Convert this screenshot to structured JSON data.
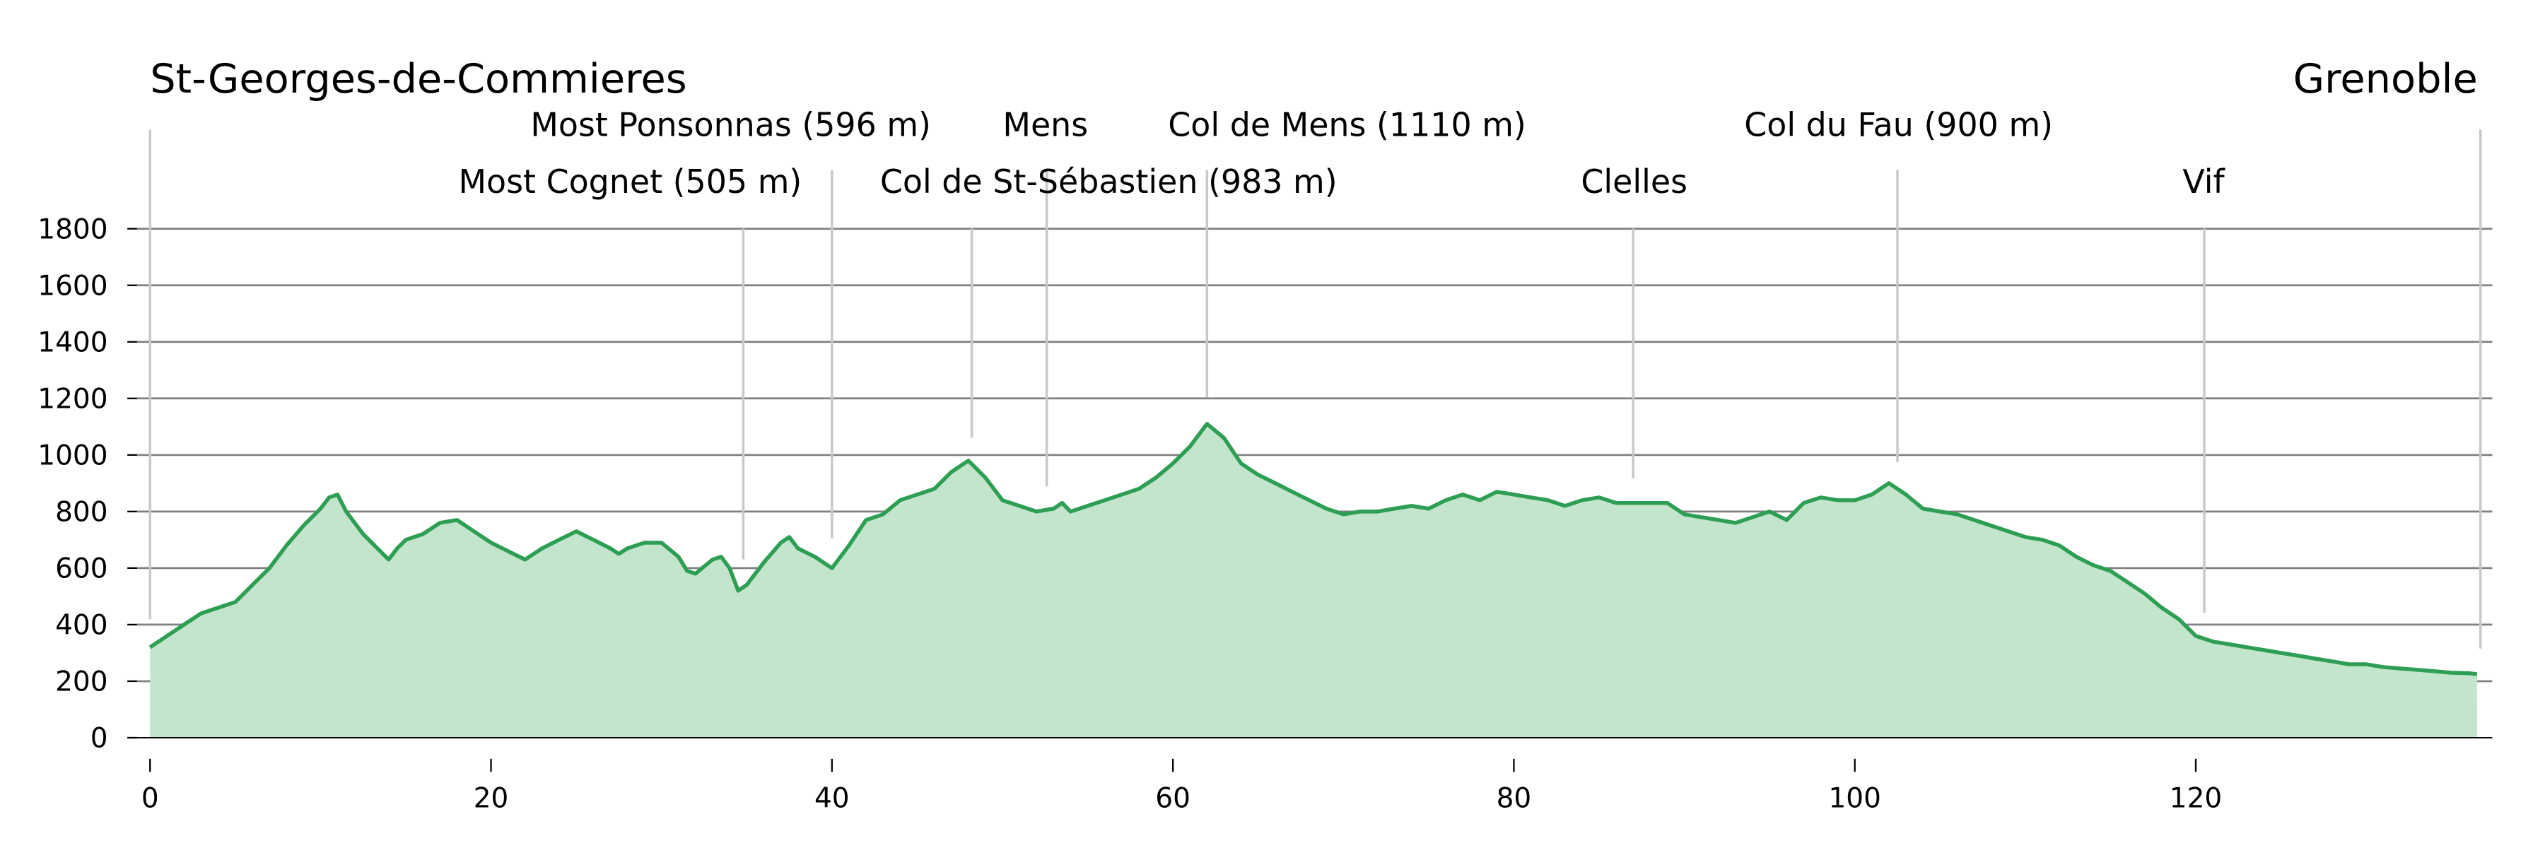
{
  "chart_data": {
    "type": "area",
    "title_start": "St-Georges-de-Commieres",
    "title_end": "Grenoble",
    "xlabel": "",
    "ylabel": "",
    "xlim": [
      0,
      137
    ],
    "ylim": [
      0,
      1800
    ],
    "xticks": [
      0,
      20,
      40,
      60,
      80,
      100,
      120
    ],
    "yticks": [
      0,
      200,
      400,
      600,
      800,
      1000,
      1200,
      1400,
      1600,
      1800
    ],
    "grid": "horizontal",
    "colors": {
      "line": "#2e9e55",
      "fill": "#c2e5cb",
      "grid": "#808080",
      "marker": "#c8c8c8"
    },
    "x": [
      0,
      1,
      2,
      3,
      4,
      5,
      6,
      7,
      8,
      9,
      10,
      10.5,
      11,
      11.5,
      12.5,
      13.5,
      14,
      14.5,
      15,
      16,
      17,
      18,
      19,
      20,
      21,
      22,
      23,
      24,
      25,
      26,
      27,
      27.5,
      28,
      29,
      30,
      31,
      31.5,
      32,
      33,
      33.5,
      34,
      34.5,
      35,
      36,
      37,
      37.5,
      38,
      39,
      40,
      41,
      42,
      43,
      44,
      45,
      46,
      47,
      48,
      49,
      50,
      51,
      52,
      53,
      53.5,
      54,
      55,
      56,
      57,
      58,
      59,
      60,
      61,
      62,
      63,
      64,
      65,
      66,
      67,
      68,
      69,
      70,
      71,
      72,
      73,
      74,
      75,
      76,
      77,
      78,
      79,
      80,
      81,
      82,
      83,
      84,
      85,
      86,
      87,
      88,
      89,
      90,
      91,
      92,
      93,
      94,
      95,
      96,
      97,
      98,
      99,
      100,
      101,
      102,
      103,
      104,
      105,
      106,
      107,
      108,
      109,
      110,
      111,
      112,
      113,
      114,
      115,
      116,
      117,
      118,
      119,
      120,
      121,
      122,
      123,
      124,
      125,
      126,
      127,
      128,
      129,
      130,
      131,
      132,
      133,
      134,
      135,
      136,
      136.5
    ],
    "y": [
      320,
      360,
      400,
      440,
      460,
      480,
      540,
      600,
      680,
      750,
      810,
      850,
      860,
      800,
      720,
      660,
      630,
      670,
      700,
      720,
      760,
      770,
      730,
      690,
      660,
      630,
      670,
      700,
      730,
      700,
      670,
      650,
      670,
      690,
      690,
      640,
      590,
      580,
      630,
      640,
      600,
      520,
      540,
      620,
      690,
      710,
      670,
      640,
      600,
      680,
      770,
      790,
      840,
      860,
      880,
      940,
      980,
      920,
      840,
      820,
      800,
      810,
      830,
      800,
      820,
      840,
      860,
      880,
      920,
      970,
      1030,
      1110,
      1060,
      970,
      930,
      900,
      870,
      840,
      810,
      790,
      800,
      800,
      810,
      820,
      810,
      840,
      860,
      840,
      870,
      860,
      850,
      840,
      820,
      840,
      850,
      830,
      830,
      830,
      830,
      790,
      780,
      770,
      760,
      780,
      800,
      770,
      830,
      850,
      840,
      840,
      860,
      900,
      860,
      810,
      800,
      790,
      770,
      750,
      730,
      710,
      700,
      680,
      640,
      610,
      590,
      550,
      510,
      460,
      420,
      360,
      340,
      330,
      320,
      310,
      300,
      290,
      280,
      270,
      260,
      260,
      250,
      245,
      240,
      235,
      230,
      228,
      225
    ],
    "annotations": [
      {
        "label": "Most Cognet (505 m)",
        "x": 34.8
      },
      {
        "label": "Most Ponsonnas (596 m)",
        "x": 40.0
      },
      {
        "label": "Col de St-Sébastien (983 m)",
        "x": 48.2
      },
      {
        "label": "Mens",
        "x": 52.6
      },
      {
        "label": "Col de Mens (1110 m)",
        "x": 62.0
      },
      {
        "label": "Clelles",
        "x": 87.0
      },
      {
        "label": "Col du Fau (900 m)",
        "x": 102.5
      },
      {
        "label": "Vif",
        "x": 120.5
      }
    ],
    "endpoints": [
      {
        "label": "St-Georges-de-Commieres",
        "x": 0
      },
      {
        "label": "Grenoble",
        "x": 136.7
      }
    ]
  }
}
